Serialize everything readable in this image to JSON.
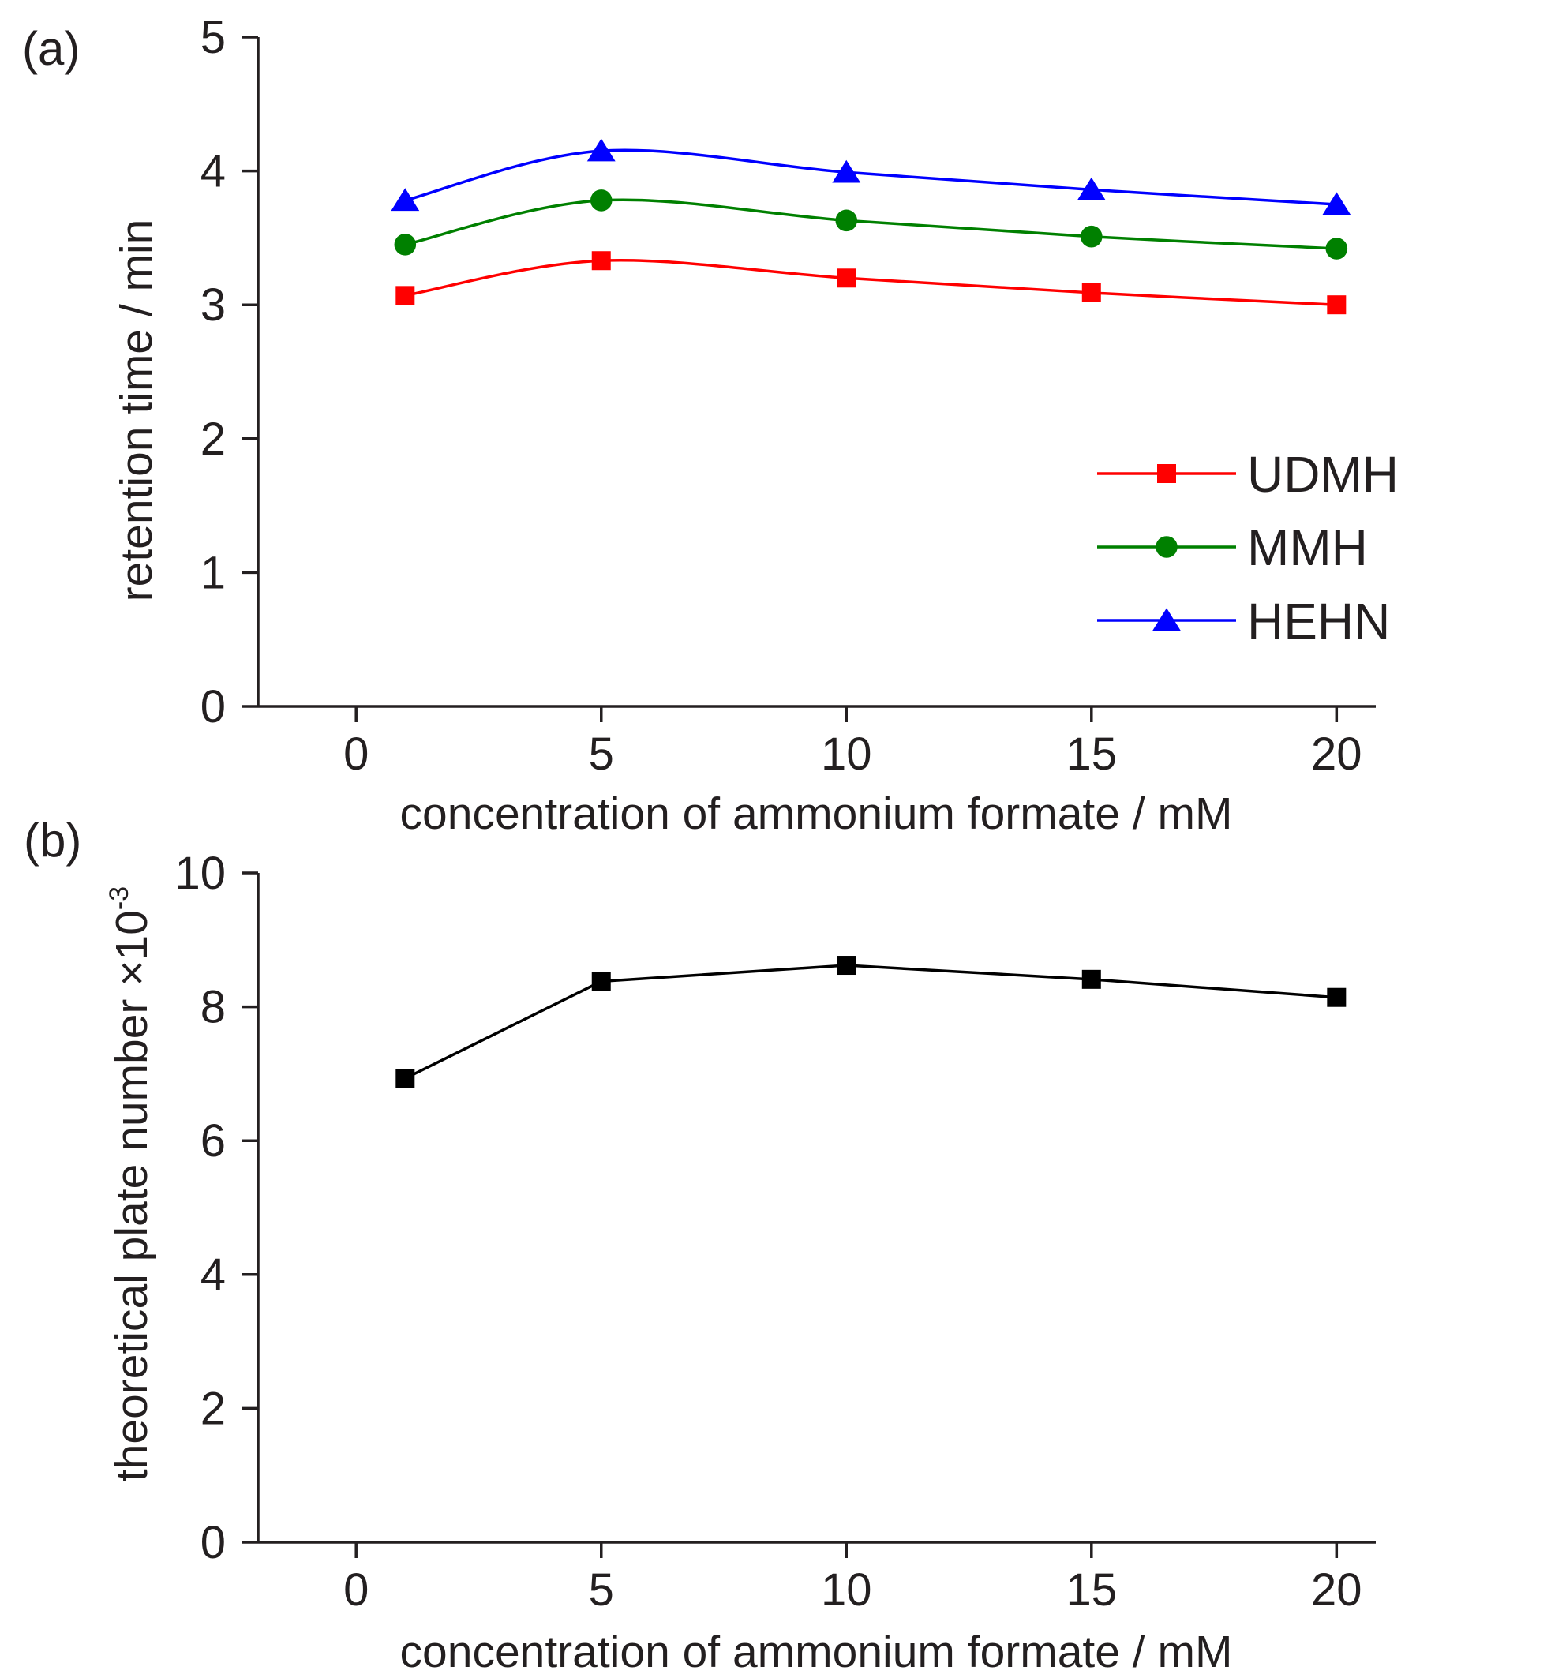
{
  "chart_data": [
    {
      "type": "line",
      "panel_label": "(a)",
      "xlabel": "concentration of ammonium formate / mM",
      "ylabel": "retention time / min",
      "xlim": [
        -2,
        20.8
      ],
      "ylim": [
        0,
        5
      ],
      "xticks": [
        0,
        5,
        10,
        15,
        20
      ],
      "yticks": [
        0,
        1,
        2,
        3,
        4,
        5
      ],
      "smooth": true,
      "legend_position": "right-center",
      "series": [
        {
          "name": "UDMH",
          "color": "#ff0000",
          "marker": "square",
          "x": [
            1,
            5,
            10,
            15,
            20
          ],
          "y": [
            3.07,
            3.33,
            3.2,
            3.09,
            3.0
          ]
        },
        {
          "name": "MMH",
          "color": "#008000",
          "marker": "circle",
          "x": [
            1,
            5,
            10,
            15,
            20
          ],
          "y": [
            3.45,
            3.78,
            3.63,
            3.51,
            3.42
          ]
        },
        {
          "name": "HEHN",
          "color": "#0000ff",
          "marker": "triangle",
          "x": [
            1,
            5,
            10,
            15,
            20
          ],
          "y": [
            3.78,
            4.15,
            3.99,
            3.86,
            3.75
          ]
        }
      ]
    },
    {
      "type": "line",
      "panel_label": "(b)",
      "xlabel": "concentration of ammonium formate / mM",
      "ylabel": "theoretical plate number ×10",
      "ylabel_exponent": "-3",
      "xlim": [
        -2,
        20.8
      ],
      "ylim": [
        0,
        10
      ],
      "xticks": [
        0,
        5,
        10,
        15,
        20
      ],
      "yticks": [
        0,
        2,
        4,
        6,
        8,
        10
      ],
      "smooth": false,
      "series": [
        {
          "color": "#000000",
          "marker": "square",
          "x": [
            1,
            5,
            10,
            15,
            20
          ],
          "y": [
            6.93,
            8.38,
            8.62,
            8.41,
            8.14
          ]
        }
      ]
    }
  ]
}
